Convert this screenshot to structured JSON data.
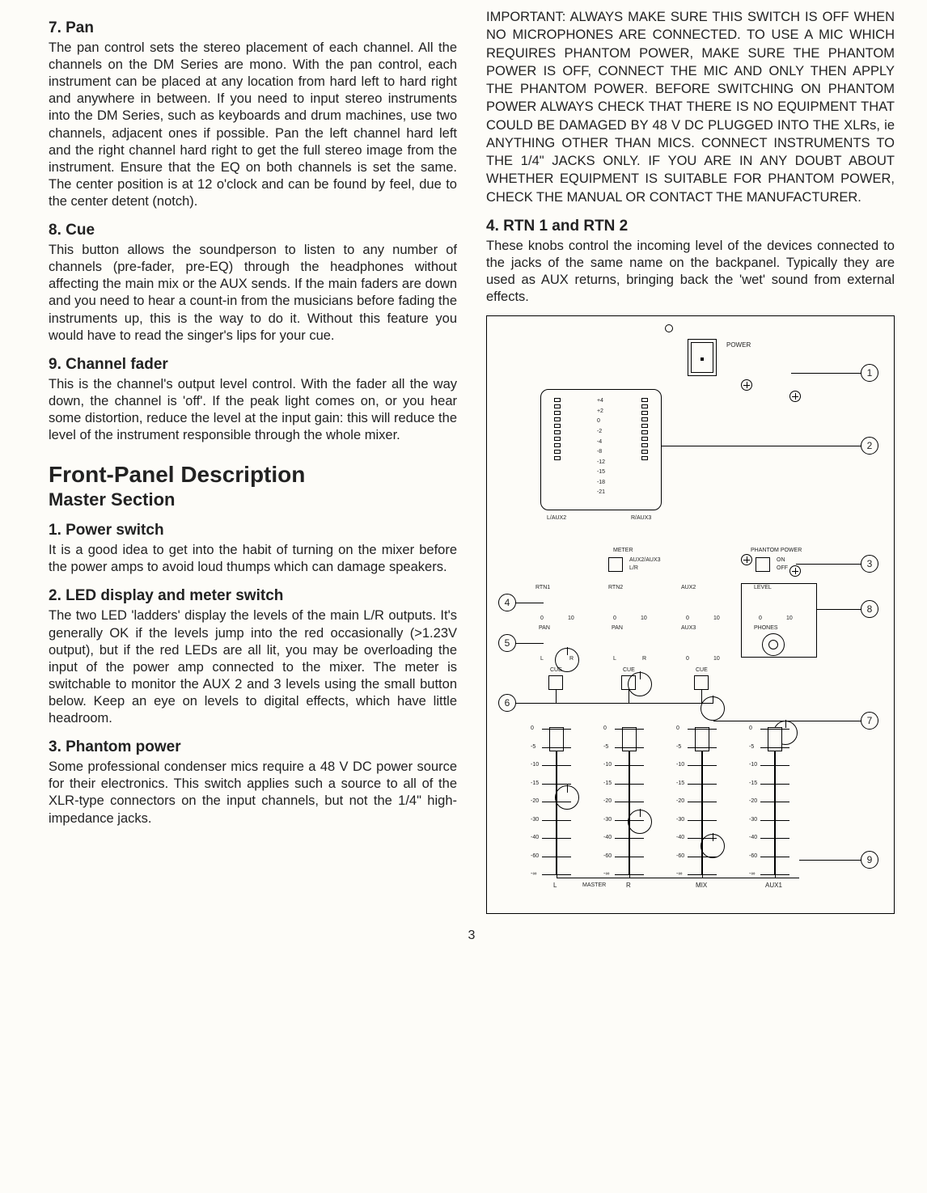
{
  "page_number": "3",
  "left": {
    "s7": {
      "h": "7. Pan",
      "p": "The pan control sets the stereo placement of each channel. All the channels on the DM Series are mono. With the pan control, each instrument can be placed at any location from hard left to hard right and anywhere in between. If you need to input stereo instruments into the DM Series, such as keyboards and drum machines, use two channels, adjacent ones if possible. Pan the left channel hard left and the right channel hard right to get the full stereo image from the instrument. Ensure that the EQ on both channels is set the same. The center position is at 12 o'clock and can be found by feel, due to the center detent (notch)."
    },
    "s8": {
      "h": "8. Cue",
      "p": "This button allows the soundperson to listen to any number of channels (pre-fader, pre-EQ) through the headphones without affecting the main mix or the AUX sends. If the main faders are down and you need to hear a count-in from the musicians before fading the instruments up, this is the way to do it. Without this feature you would have to read the singer's lips for your cue."
    },
    "s9": {
      "h": "9. Channel fader",
      "p": "This is the channel's output level control. With the fader all the way down, the channel is 'off'. If the peak light comes on, or you hear some distortion, reduce the level at the input gain: this will reduce the level of the instrument responsible through the whole mixer."
    },
    "bigh": "Front-Panel Description",
    "subh": "Master Section",
    "s1": {
      "h": "1. Power switch",
      "p": "It is a good idea to get into the habit of turning on the mixer before the power amps to avoid loud thumps which can damage speakers."
    },
    "s2": {
      "h": "2. LED display and meter switch",
      "p": "The two LED 'ladders' display the levels of the main L/R outputs. It's generally OK if the levels jump into the red occasionally (>1.23V output), but if the red LEDs are all lit, you may be overloading the input of the power amp connected to the mixer. The meter is switchable to monitor the AUX 2 and 3 levels using the small button below. Keep an eye on levels to digital effects, which have little headroom."
    },
    "s3": {
      "h": "3. Phantom power",
      "p": "Some professional condenser mics require a 48 V DC power source for their electronics. This switch applies such a source to all of the XLR-type connectors on the input channels, but not the 1/4\" high-impedance jacks."
    }
  },
  "right": {
    "warn": "IMPORTANT: ALWAYS MAKE SURE THIS SWITCH IS OFF WHEN NO MICROPHONES ARE CONNECTED. TO USE A MIC WHICH REQUIRES PHANTOM POWER, MAKE SURE THE PHANTOM POWER IS OFF, CONNECT THE MIC AND ONLY THEN APPLY THE PHANTOM POWER. BEFORE SWITCHING ON PHANTOM POWER ALWAYS CHECK THAT THERE IS NO EQUIPMENT THAT COULD BE DAMAGED BY 48 V DC PLUGGED INTO THE XLRs, ie ANYTHING OTHER THAN MICS. CONNECT INSTRUMENTS TO THE 1/4\" JACKS ONLY. IF YOU ARE IN ANY DOUBT ABOUT WHETHER EQUIPMENT IS SUITABLE FOR PHANTOM POWER, CHECK THE MANUAL OR CONTACT THE MANUFACTURER.",
    "s4": {
      "h": "4. RTN 1 and RTN 2",
      "p": "These knobs control the incoming level of the devices connected to the jacks of the same name on the backpanel. Typically they are used as AUX returns, bringing back the 'wet' sound from external effects."
    }
  },
  "diagram": {
    "callouts": [
      "1",
      "2",
      "3",
      "4",
      "5",
      "6",
      "7",
      "8",
      "9"
    ],
    "labels": {
      "power": "POWER",
      "laux2": "L/AUX2",
      "raux3": "R/AUX3",
      "meter": "METER",
      "auxlr": "AUX2/AUX3",
      "lr": "L/R",
      "phantom": "PHANTOM POWER",
      "on": "ON",
      "off": "OFF",
      "rtn1": "RTN1",
      "rtn2": "RTN2",
      "aux2": "AUX2",
      "level": "LEVEL",
      "pan": "PAN",
      "aux3": "AUX3",
      "phones": "PHONES",
      "cue": "CUE",
      "l_r": "L",
      "r_r": "R",
      "master": "MASTER",
      "mix": "MIX",
      "aux1": "AUX1"
    },
    "meter_ticks": [
      "+4",
      "+2",
      "0",
      "-2",
      "-4",
      "-8",
      "-12",
      "-15",
      "-18",
      "-21"
    ],
    "fader_ticks": [
      "0",
      "-5",
      "-10",
      "-15",
      "-20",
      "-30",
      "-40",
      "-60",
      "-∞"
    ],
    "knob_scale": {
      "min": "0",
      "max": "10",
      "center": "U"
    },
    "fader_labels": [
      "L",
      "R",
      "MIX",
      "AUX1"
    ],
    "colors": {
      "line": "#000000",
      "bg": "#fdfcf8"
    }
  }
}
